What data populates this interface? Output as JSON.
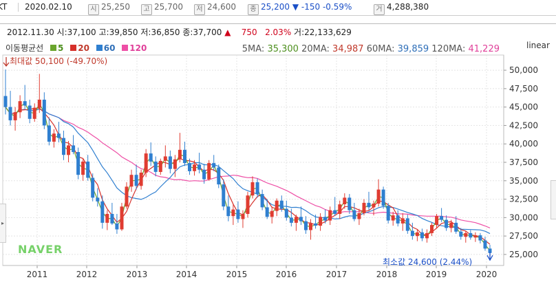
{
  "top": {
    "ticker": "KT",
    "date": "2020.02.10",
    "open_icon": "시",
    "open": "25,250",
    "high_icon": "고",
    "high": "25,700",
    "low_icon": "저",
    "low": "24,600",
    "close_icon": "종",
    "close": "25,200",
    "change_arrow": "▼",
    "change": "-150",
    "change_pct": "-0.59%",
    "volume_icon": "거",
    "volume": "4,288,380"
  },
  "ohlc": {
    "date": "2012.11.30",
    "open_label": "시:",
    "open": "37,100",
    "high_label": "고:",
    "high": "39,850",
    "low_label": "저:",
    "low": "36,850",
    "close_label": "종:",
    "close": "37,700",
    "arrow": "▲",
    "change": "750",
    "change_pct": "2.03%",
    "volume_label": "거:",
    "volume": "22,133,629"
  },
  "legend": {
    "title": "이동평균선",
    "items": [
      {
        "label": "5",
        "color": "#6aa52d"
      },
      {
        "label": "20",
        "color": "#d6302a"
      },
      {
        "label": "60",
        "color": "#2f7fd0"
      },
      {
        "label": "120",
        "color": "#ee4fa6"
      }
    ]
  },
  "ma_values": [
    {
      "label": "5MA:",
      "value": "35,300",
      "color": "#4d8f1e"
    },
    {
      "label": "20MA:",
      "value": "34,987",
      "color": "#c0392b"
    },
    {
      "label": "60MA:",
      "value": "39,859",
      "color": "#2f6fb8"
    },
    {
      "label": "120MA:",
      "value": "41,229",
      "color": "#e0409a"
    }
  ],
  "scale_mode": "linear",
  "watermark": "NAVER",
  "max_label": "최대값 50,100 (-49.70%)",
  "min_label": "최소값 24,600 (2.44%)",
  "chart_data": {
    "type": "candlestick",
    "x_labels": [
      "2011",
      "2012",
      "2013",
      "2014",
      "2015",
      "2016",
      "2017",
      "2018",
      "2019",
      "2020"
    ],
    "y_ticks": [
      "25,000",
      "27,500",
      "30,000",
      "32,500",
      "35,000",
      "37,500",
      "40,000",
      "42,500",
      "45,000",
      "47,500",
      "50,000"
    ],
    "y_tick_values": [
      25000,
      27500,
      30000,
      32500,
      35000,
      37500,
      40000,
      42500,
      45000,
      47500,
      50000
    ],
    "ylim": [
      23500,
      51500
    ],
    "up_color": "#e03c31",
    "down_color": "#2f7fd0",
    "candles": [
      [
        46500,
        50100,
        44000,
        45000
      ],
      [
        45000,
        47200,
        42500,
        43200
      ],
      [
        43200,
        45000,
        41800,
        44300
      ],
      [
        44300,
        46600,
        43500,
        45800
      ],
      [
        45800,
        48000,
        44800,
        45200
      ],
      [
        45200,
        46000,
        42800,
        43400
      ],
      [
        43400,
        45500,
        43000,
        44900
      ],
      [
        44900,
        49500,
        44200,
        46000
      ],
      [
        46000,
        47000,
        42000,
        42500
      ],
      [
        42500,
        43600,
        39800,
        40300
      ],
      [
        40300,
        42000,
        39500,
        41400
      ],
      [
        41400,
        43000,
        40200,
        40800
      ],
      [
        40800,
        41800,
        37800,
        38500
      ],
      [
        38500,
        40400,
        37500,
        39800
      ],
      [
        39800,
        41200,
        38600,
        38900
      ],
      [
        38900,
        39500,
        35200,
        35800
      ],
      [
        35800,
        38000,
        35000,
        37600
      ],
      [
        37600,
        38500,
        35000,
        35400
      ],
      [
        35400,
        36000,
        32200,
        32700
      ],
      [
        32700,
        34000,
        31500,
        32200
      ],
      [
        32200,
        33000,
        28500,
        29300
      ],
      [
        29300,
        31000,
        28300,
        30500
      ],
      [
        30500,
        32000,
        29000,
        29200
      ],
      [
        29200,
        30500,
        27800,
        28400
      ],
      [
        28400,
        32000,
        28200,
        31500
      ],
      [
        31500,
        34800,
        31200,
        34200
      ],
      [
        34200,
        36500,
        33500,
        35800
      ],
      [
        35800,
        37200,
        33800,
        34300
      ],
      [
        34300,
        36500,
        33800,
        36100
      ],
      [
        36100,
        39300,
        35500,
        38700
      ],
      [
        38700,
        40200,
        37000,
        37600
      ],
      [
        37600,
        38300,
        35600,
        36200
      ],
      [
        36200,
        38000,
        35800,
        37700
      ],
      [
        37700,
        39800,
        36800,
        38300
      ],
      [
        38300,
        39100,
        36000,
        36600
      ],
      [
        36600,
        38500,
        35500,
        37900
      ],
      [
        37900,
        41500,
        37500,
        39200
      ],
      [
        39200,
        40300,
        37000,
        37400
      ],
      [
        37400,
        38000,
        35800,
        36300
      ],
      [
        36300,
        37800,
        35700,
        37200
      ],
      [
        37200,
        38800,
        36000,
        36500
      ],
      [
        36500,
        37300,
        34600,
        35200
      ],
      [
        35200,
        37800,
        35000,
        37400
      ],
      [
        37400,
        38500,
        36300,
        36800
      ],
      [
        36800,
        37200,
        34000,
        34500
      ],
      [
        34500,
        35200,
        31000,
        31500
      ],
      [
        31500,
        33000,
        29500,
        30200
      ],
      [
        30200,
        31800,
        29000,
        31100
      ],
      [
        31100,
        32200,
        29300,
        29800
      ],
      [
        29800,
        31000,
        28600,
        30500
      ],
      [
        30500,
        33500,
        30000,
        33000
      ],
      [
        33000,
        35600,
        32600,
        34800
      ],
      [
        34800,
        35300,
        32700,
        33200
      ],
      [
        33200,
        33800,
        31000,
        31400
      ],
      [
        31400,
        32500,
        29800,
        30100
      ],
      [
        30100,
        31500,
        29200,
        30900
      ],
      [
        30900,
        32600,
        30200,
        32300
      ],
      [
        32300,
        33000,
        30800,
        31200
      ],
      [
        31200,
        32300,
        29600,
        30000
      ],
      [
        30000,
        31200,
        28800,
        29300
      ],
      [
        29300,
        30400,
        28200,
        30100
      ],
      [
        30100,
        31500,
        29000,
        29500
      ],
      [
        29500,
        30200,
        27800,
        28300
      ],
      [
        28300,
        29800,
        27000,
        29200
      ],
      [
        29200,
        30400,
        28500,
        28900
      ],
      [
        28900,
        30600,
        28200,
        30100
      ],
      [
        30100,
        31100,
        29200,
        29600
      ],
      [
        29600,
        31500,
        29000,
        31000
      ],
      [
        31000,
        32800,
        30200,
        30500
      ],
      [
        30500,
        32300,
        29800,
        31800
      ],
      [
        31800,
        33300,
        31200,
        32700
      ],
      [
        32700,
        33200,
        30500,
        31000
      ],
      [
        31000,
        32000,
        29500,
        29800
      ],
      [
        29800,
        31200,
        29000,
        30600
      ],
      [
        30600,
        32500,
        30300,
        32000
      ],
      [
        32000,
        33500,
        31000,
        31400
      ],
      [
        31400,
        32300,
        30300,
        31900
      ],
      [
        31900,
        35200,
        31500,
        33800
      ],
      [
        33800,
        34200,
        31200,
        31600
      ],
      [
        31600,
        32000,
        29200,
        29600
      ],
      [
        29600,
        30800,
        28900,
        30300
      ],
      [
        30300,
        31000,
        28800,
        29200
      ],
      [
        29200,
        30600,
        28200,
        29900
      ],
      [
        29900,
        30400,
        27800,
        28200
      ],
      [
        28200,
        29300,
        27000,
        27500
      ],
      [
        27500,
        28400,
        26800,
        28000
      ],
      [
        28000,
        28500,
        26800,
        27200
      ],
      [
        27200,
        28400,
        26600,
        27900
      ],
      [
        27900,
        29300,
        27500,
        29000
      ],
      [
        29000,
        30500,
        28500,
        30200
      ],
      [
        30200,
        31300,
        29400,
        29700
      ],
      [
        29700,
        30300,
        28200,
        28600
      ],
      [
        28600,
        29700,
        28000,
        29300
      ],
      [
        29300,
        30200,
        27800,
        28100
      ],
      [
        28100,
        28600,
        27000,
        27400
      ],
      [
        27400,
        28200,
        26600,
        27900
      ],
      [
        27900,
        28300,
        27000,
        27300
      ],
      [
        27300,
        28000,
        26700,
        27600
      ],
      [
        27600,
        27900,
        26500,
        26900
      ],
      [
        26900,
        27400,
        25500,
        25800
      ],
      [
        25800,
        26300,
        24600,
        25200
      ]
    ]
  }
}
